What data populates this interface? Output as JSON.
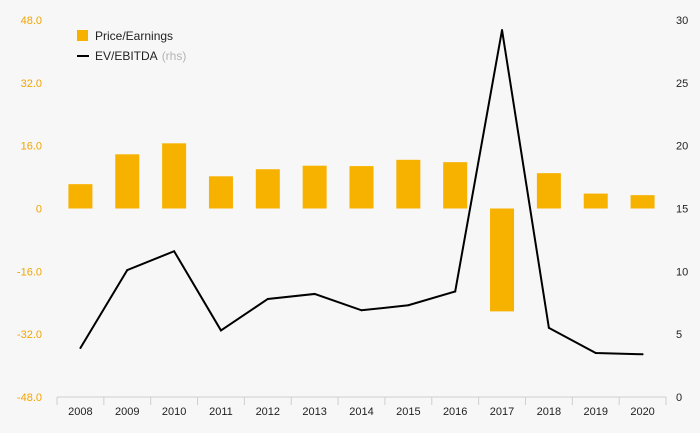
{
  "chart_data": {
    "type": "bar",
    "categories": [
      "2008",
      "2009",
      "2010",
      "2011",
      "2012",
      "2013",
      "2014",
      "2015",
      "2016",
      "2017",
      "2018",
      "2019",
      "2020"
    ],
    "series": [
      {
        "name": "Price/Earnings",
        "kind": "bar",
        "axis": "left",
        "color": "#f7b200",
        "values": [
          6.2,
          13.8,
          16.6,
          8.2,
          10.0,
          10.9,
          10.8,
          12.4,
          11.8,
          -26.2,
          9.0,
          3.8,
          3.4
        ]
      },
      {
        "name": "EV/EBITDA",
        "kind": "line",
        "axis": "right",
        "color": "#000000",
        "values": [
          3.9,
          10.1,
          11.6,
          5.3,
          7.8,
          8.2,
          6.9,
          7.3,
          8.4,
          29.2,
          5.5,
          3.5,
          3.4
        ]
      }
    ],
    "left_axis": {
      "ylim": [
        -48,
        48
      ],
      "ticks": [
        48,
        32,
        16,
        0,
        -16,
        -32,
        -48
      ],
      "tick_labels": [
        "48.0",
        "32.0",
        "16.0",
        "0",
        "-16.0",
        "-32.0",
        "-48.0"
      ],
      "color": "#f0a500"
    },
    "right_axis": {
      "ylim": [
        0,
        30
      ],
      "ticks": [
        30,
        25,
        20,
        15,
        10,
        5,
        0
      ],
      "tick_labels": [
        "30",
        "25",
        "20",
        "15",
        "10",
        "5",
        "0"
      ]
    },
    "legend": {
      "placement": "top-left",
      "items": [
        {
          "label": "Price/Earnings",
          "suffix": "",
          "marker": "square",
          "color": "#f7b200"
        },
        {
          "label": "EV/EBITDA",
          "suffix": "(rhs)",
          "marker": "line",
          "color": "#000000"
        }
      ]
    },
    "grid": false,
    "title": "",
    "xlabel": "",
    "ylabel": ""
  }
}
